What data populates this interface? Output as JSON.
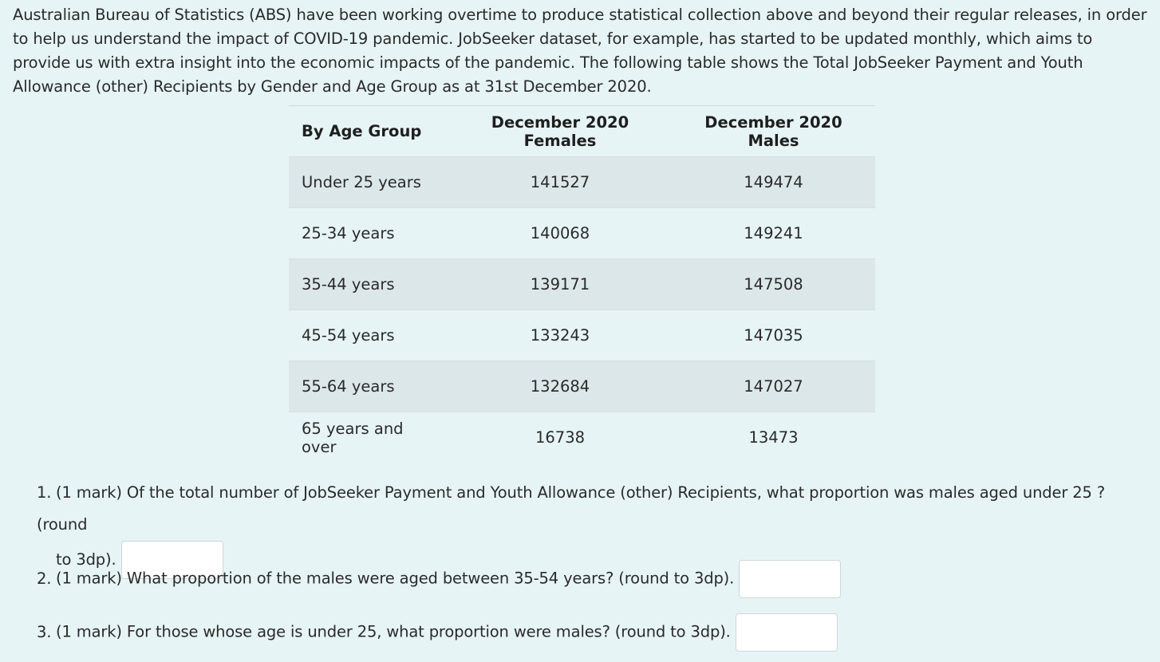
{
  "intro": {
    "text": "Australian Bureau of Statistics (ABS) have been working overtime to produce statistical collection above and beyond their regular releases, in order to help us understand the impact of COVID-19 pandemic. JobSeeker dataset, for example, has started to be updated monthly, which aims to provide us with extra insight into the economic impacts of the pandemic. The following table shows the Total JobSeeker Payment and Youth Allowance (other) Recipients by Gender and Age Group as at 31st December 2020."
  },
  "table": {
    "headers": [
      "By Age Group",
      "December 2020 Females",
      "December 2020 Males"
    ],
    "rows": [
      {
        "age": "Under 25 years",
        "females": "141527",
        "males": "149474"
      },
      {
        "age": "25-34 years",
        "females": "140068",
        "males": "149241"
      },
      {
        "age": "35-44 years",
        "females": "139171",
        "males": "147508"
      },
      {
        "age": "45-54 years",
        "females": "133243",
        "males": "147035"
      },
      {
        "age": "55-64 years",
        "females": "132684",
        "males": "147027"
      },
      {
        "age": "65 years and over",
        "females": "16738",
        "males": "13473"
      }
    ]
  },
  "questions": [
    {
      "number": "1.",
      "line1": "(1 mark) Of the total number of JobSeeker Payment and Youth Allowance (other) Recipients, what proportion was males aged under 25 ? (round",
      "line2": "to 3dp).",
      "answer_value": ""
    },
    {
      "number": "2.",
      "text": "(1 mark) What proportion of the males were aged between 35-54 years? (round to 3dp).",
      "answer_value": ""
    },
    {
      "number": "3.",
      "text": "(1 mark) For those whose age is under 25, what proportion were males? (round to 3dp).",
      "answer_value": ""
    }
  ]
}
